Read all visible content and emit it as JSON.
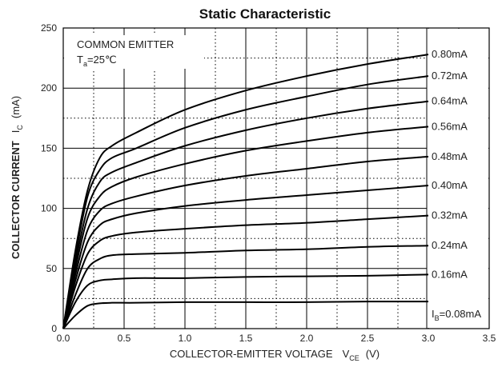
{
  "chart_data": {
    "type": "line",
    "title": "Static Characteristic",
    "xlabel": {
      "main": "COLLECTOR-EMITTER VOLTAGE",
      "symbol": "V",
      "subscript": "CE",
      "unit": "(V)"
    },
    "ylabel": {
      "main": "COLLECTOR CURRENT",
      "symbol": "I",
      "subscript": "C",
      "unit": "(mA)"
    },
    "xlim": [
      0,
      3.5
    ],
    "ylim": [
      0,
      250
    ],
    "x_ticks": [
      "0.0",
      "0.5",
      "1.0",
      "1.5",
      "2.0",
      "2.5",
      "3.0",
      "3.5"
    ],
    "y_ticks": [
      "0",
      "50",
      "100",
      "150",
      "200",
      "250"
    ],
    "grid": {
      "major": "solid",
      "minor": "dotted"
    },
    "annotations": {
      "configuration": "COMMON EMITTER",
      "temperature": {
        "symbol": "T",
        "subscript": "a",
        "value": "=25℃"
      }
    },
    "series": [
      {
        "label": "0.80mA",
        "points": [
          [
            0,
            0
          ],
          [
            0.1,
            65
          ],
          [
            0.2,
            115
          ],
          [
            0.3,
            142
          ],
          [
            0.4,
            152
          ],
          [
            0.6,
            163
          ],
          [
            1.0,
            182
          ],
          [
            1.5,
            198
          ],
          [
            2.0,
            210
          ],
          [
            2.5,
            220
          ],
          [
            3.0,
            228
          ]
        ]
      },
      {
        "label": "0.72mA",
        "points": [
          [
            0,
            0
          ],
          [
            0.1,
            60
          ],
          [
            0.2,
            110
          ],
          [
            0.3,
            132
          ],
          [
            0.4,
            142
          ],
          [
            0.6,
            150
          ],
          [
            1.0,
            167
          ],
          [
            1.5,
            182
          ],
          [
            2.0,
            193
          ],
          [
            2.5,
            203
          ],
          [
            3.0,
            210
          ]
        ]
      },
      {
        "label": "0.64mA",
        "points": [
          [
            0,
            0
          ],
          [
            0.1,
            55
          ],
          [
            0.2,
            100
          ],
          [
            0.3,
            122
          ],
          [
            0.4,
            130
          ],
          [
            0.6,
            138
          ],
          [
            1.0,
            152
          ],
          [
            1.5,
            165
          ],
          [
            2.0,
            175
          ],
          [
            2.5,
            183
          ],
          [
            3.0,
            189
          ]
        ]
      },
      {
        "label": "0.56mA",
        "points": [
          [
            0,
            0
          ],
          [
            0.1,
            50
          ],
          [
            0.2,
            92
          ],
          [
            0.3,
            110
          ],
          [
            0.4,
            118
          ],
          [
            0.6,
            126
          ],
          [
            1.0,
            137
          ],
          [
            1.5,
            148
          ],
          [
            2.0,
            156
          ],
          [
            2.5,
            163
          ],
          [
            3.0,
            168
          ]
        ]
      },
      {
        "label": "0.48mA",
        "points": [
          [
            0,
            0
          ],
          [
            0.1,
            45
          ],
          [
            0.2,
            82
          ],
          [
            0.3,
            98
          ],
          [
            0.4,
            104
          ],
          [
            0.6,
            110
          ],
          [
            1.0,
            119
          ],
          [
            1.5,
            127
          ],
          [
            2.0,
            133
          ],
          [
            2.5,
            139
          ],
          [
            3.0,
            143
          ]
        ]
      },
      {
        "label": "0.40mA",
        "points": [
          [
            0,
            0
          ],
          [
            0.1,
            40
          ],
          [
            0.2,
            72
          ],
          [
            0.3,
            86
          ],
          [
            0.4,
            91
          ],
          [
            0.6,
            96
          ],
          [
            1.0,
            102
          ],
          [
            1.5,
            107
          ],
          [
            2.0,
            111
          ],
          [
            2.5,
            115
          ],
          [
            3.0,
            119
          ]
        ]
      },
      {
        "label": "0.32mA",
        "points": [
          [
            0,
            0
          ],
          [
            0.1,
            35
          ],
          [
            0.2,
            62
          ],
          [
            0.3,
            73
          ],
          [
            0.4,
            77
          ],
          [
            0.6,
            80
          ],
          [
            1.0,
            83
          ],
          [
            1.5,
            86
          ],
          [
            2.0,
            88
          ],
          [
            2.5,
            91
          ],
          [
            3.0,
            94
          ]
        ]
      },
      {
        "label": "0.24mA",
        "points": [
          [
            0,
            0
          ],
          [
            0.1,
            28
          ],
          [
            0.2,
            50
          ],
          [
            0.3,
            58
          ],
          [
            0.4,
            61
          ],
          [
            0.6,
            62
          ],
          [
            1.0,
            63
          ],
          [
            1.5,
            65
          ],
          [
            2.0,
            66
          ],
          [
            2.5,
            68
          ],
          [
            3.0,
            69
          ]
        ]
      },
      {
        "label": "0.16mA",
        "points": [
          [
            0,
            0
          ],
          [
            0.1,
            22
          ],
          [
            0.2,
            36
          ],
          [
            0.3,
            40
          ],
          [
            0.4,
            41
          ],
          [
            0.6,
            42
          ],
          [
            1.0,
            42
          ],
          [
            1.5,
            43
          ],
          [
            2.0,
            43.5
          ],
          [
            2.5,
            44
          ],
          [
            3.0,
            45
          ]
        ]
      },
      {
        "label": "=0.08mA",
        "label_prefix": {
          "symbol": "I",
          "subscript": "B"
        },
        "points": [
          [
            0,
            0
          ],
          [
            0.1,
            11
          ],
          [
            0.2,
            19
          ],
          [
            0.3,
            21
          ],
          [
            0.4,
            21.5
          ],
          [
            0.6,
            21.5
          ],
          [
            1.0,
            22
          ],
          [
            1.5,
            22
          ],
          [
            2.0,
            22
          ],
          [
            2.5,
            22.5
          ],
          [
            3.0,
            22.5
          ]
        ]
      }
    ]
  }
}
